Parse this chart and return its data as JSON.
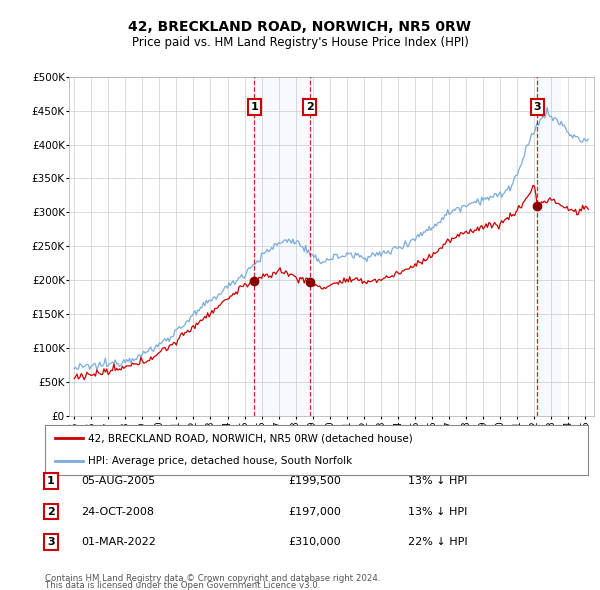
{
  "title": "42, BRECKLAND ROAD, NORWICH, NR5 0RW",
  "subtitle": "Price paid vs. HM Land Registry's House Price Index (HPI)",
  "legend_line1": "42, BRECKLAND ROAD, NORWICH, NR5 0RW (detached house)",
  "legend_line2": "HPI: Average price, detached house, South Norfolk",
  "transactions": [
    {
      "label": "1",
      "date": "05-AUG-2005",
      "price": 199500,
      "hpi_pct": "13%",
      "x_year": 2005.58,
      "price_val": 199500
    },
    {
      "label": "2",
      "date": "24-OCT-2008",
      "price": 197000,
      "hpi_pct": "13%",
      "x_year": 2008.81,
      "price_val": 197000
    },
    {
      "label": "3",
      "date": "01-MAR-2022",
      "price": 310000,
      "hpi_pct": "22%",
      "x_year": 2022.17,
      "price_val": 310000
    }
  ],
  "footer_line1": "Contains HM Land Registry data © Crown copyright and database right 2024.",
  "footer_line2": "This data is licensed under the Open Government Licence v3.0.",
  "hpi_color": "#7aacdc",
  "price_color": "#cc0000",
  "background_color": "#ffffff",
  "grid_color": "#cccccc",
  "ylim": [
    0,
    500000
  ],
  "yticks": [
    0,
    50000,
    100000,
    150000,
    200000,
    250000,
    300000,
    350000,
    400000,
    450000,
    500000
  ],
  "xlim_start": 1994.7,
  "xlim_end": 2025.5,
  "span1_x0": 2005.58,
  "span1_x1": 2008.81,
  "span2_x0": 2022.17,
  "span2_x1": 2023.5
}
